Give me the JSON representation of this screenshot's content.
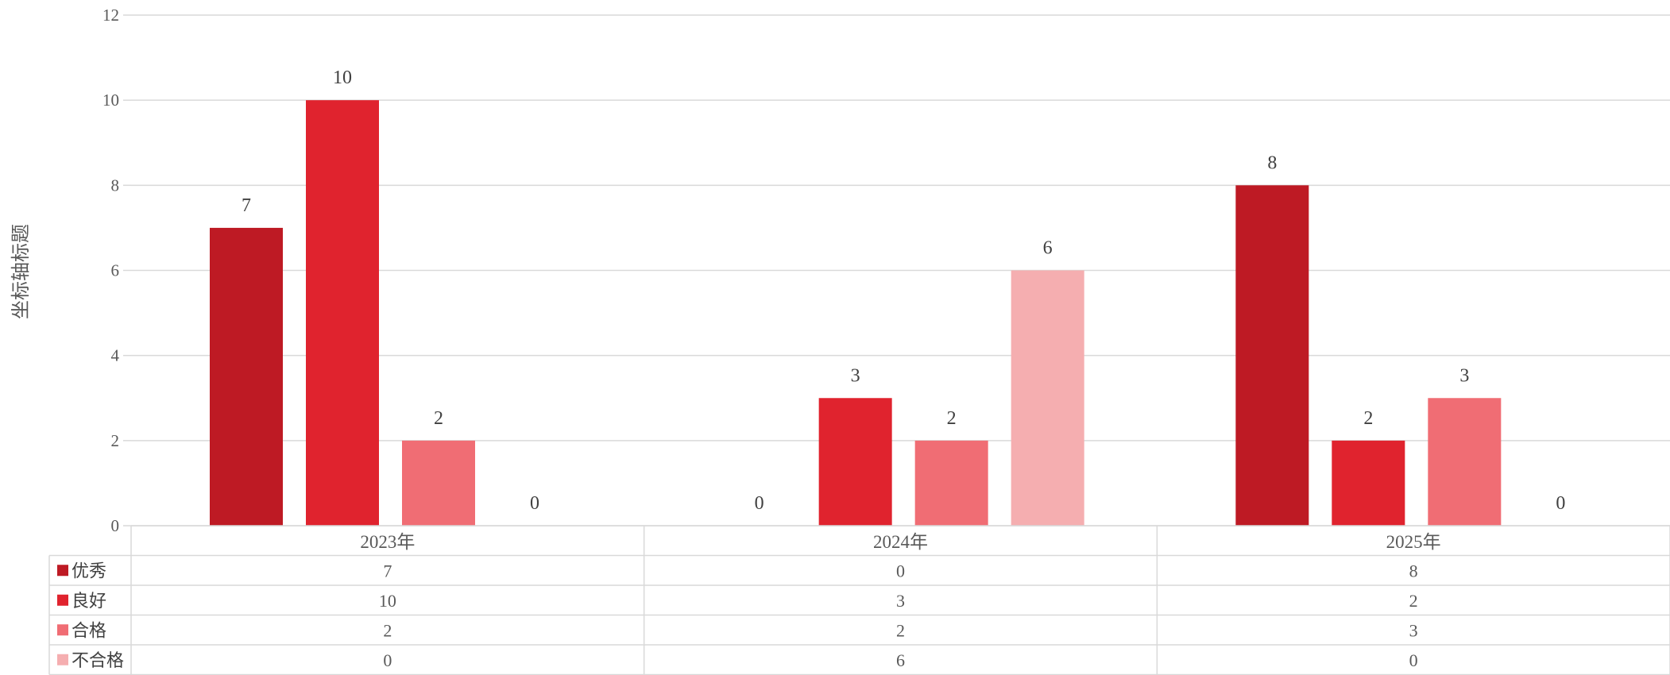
{
  "chart_data": {
    "type": "bar",
    "title": "",
    "xlabel": "",
    "ylabel": "坐标轴标题",
    "categories": [
      "2023年",
      "2024年",
      "2025年"
    ],
    "series": [
      {
        "name": "优秀",
        "color": "#BE1A24",
        "values": [
          7,
          0,
          8
        ]
      },
      {
        "name": "良好",
        "color": "#E0232E",
        "values": [
          10,
          3,
          2
        ]
      },
      {
        "name": "合格",
        "color": "#F06D74",
        "values": [
          2,
          2,
          3
        ]
      },
      {
        "name": "不合格",
        "color": "#F5AEB0",
        "values": [
          0,
          6,
          0
        ]
      }
    ],
    "ylim": [
      0,
      12
    ],
    "yticks": [
      0,
      2,
      4,
      6,
      8,
      10,
      12
    ],
    "grid": true,
    "data_labels": true,
    "data_table": true,
    "legend": "in-data-table"
  }
}
